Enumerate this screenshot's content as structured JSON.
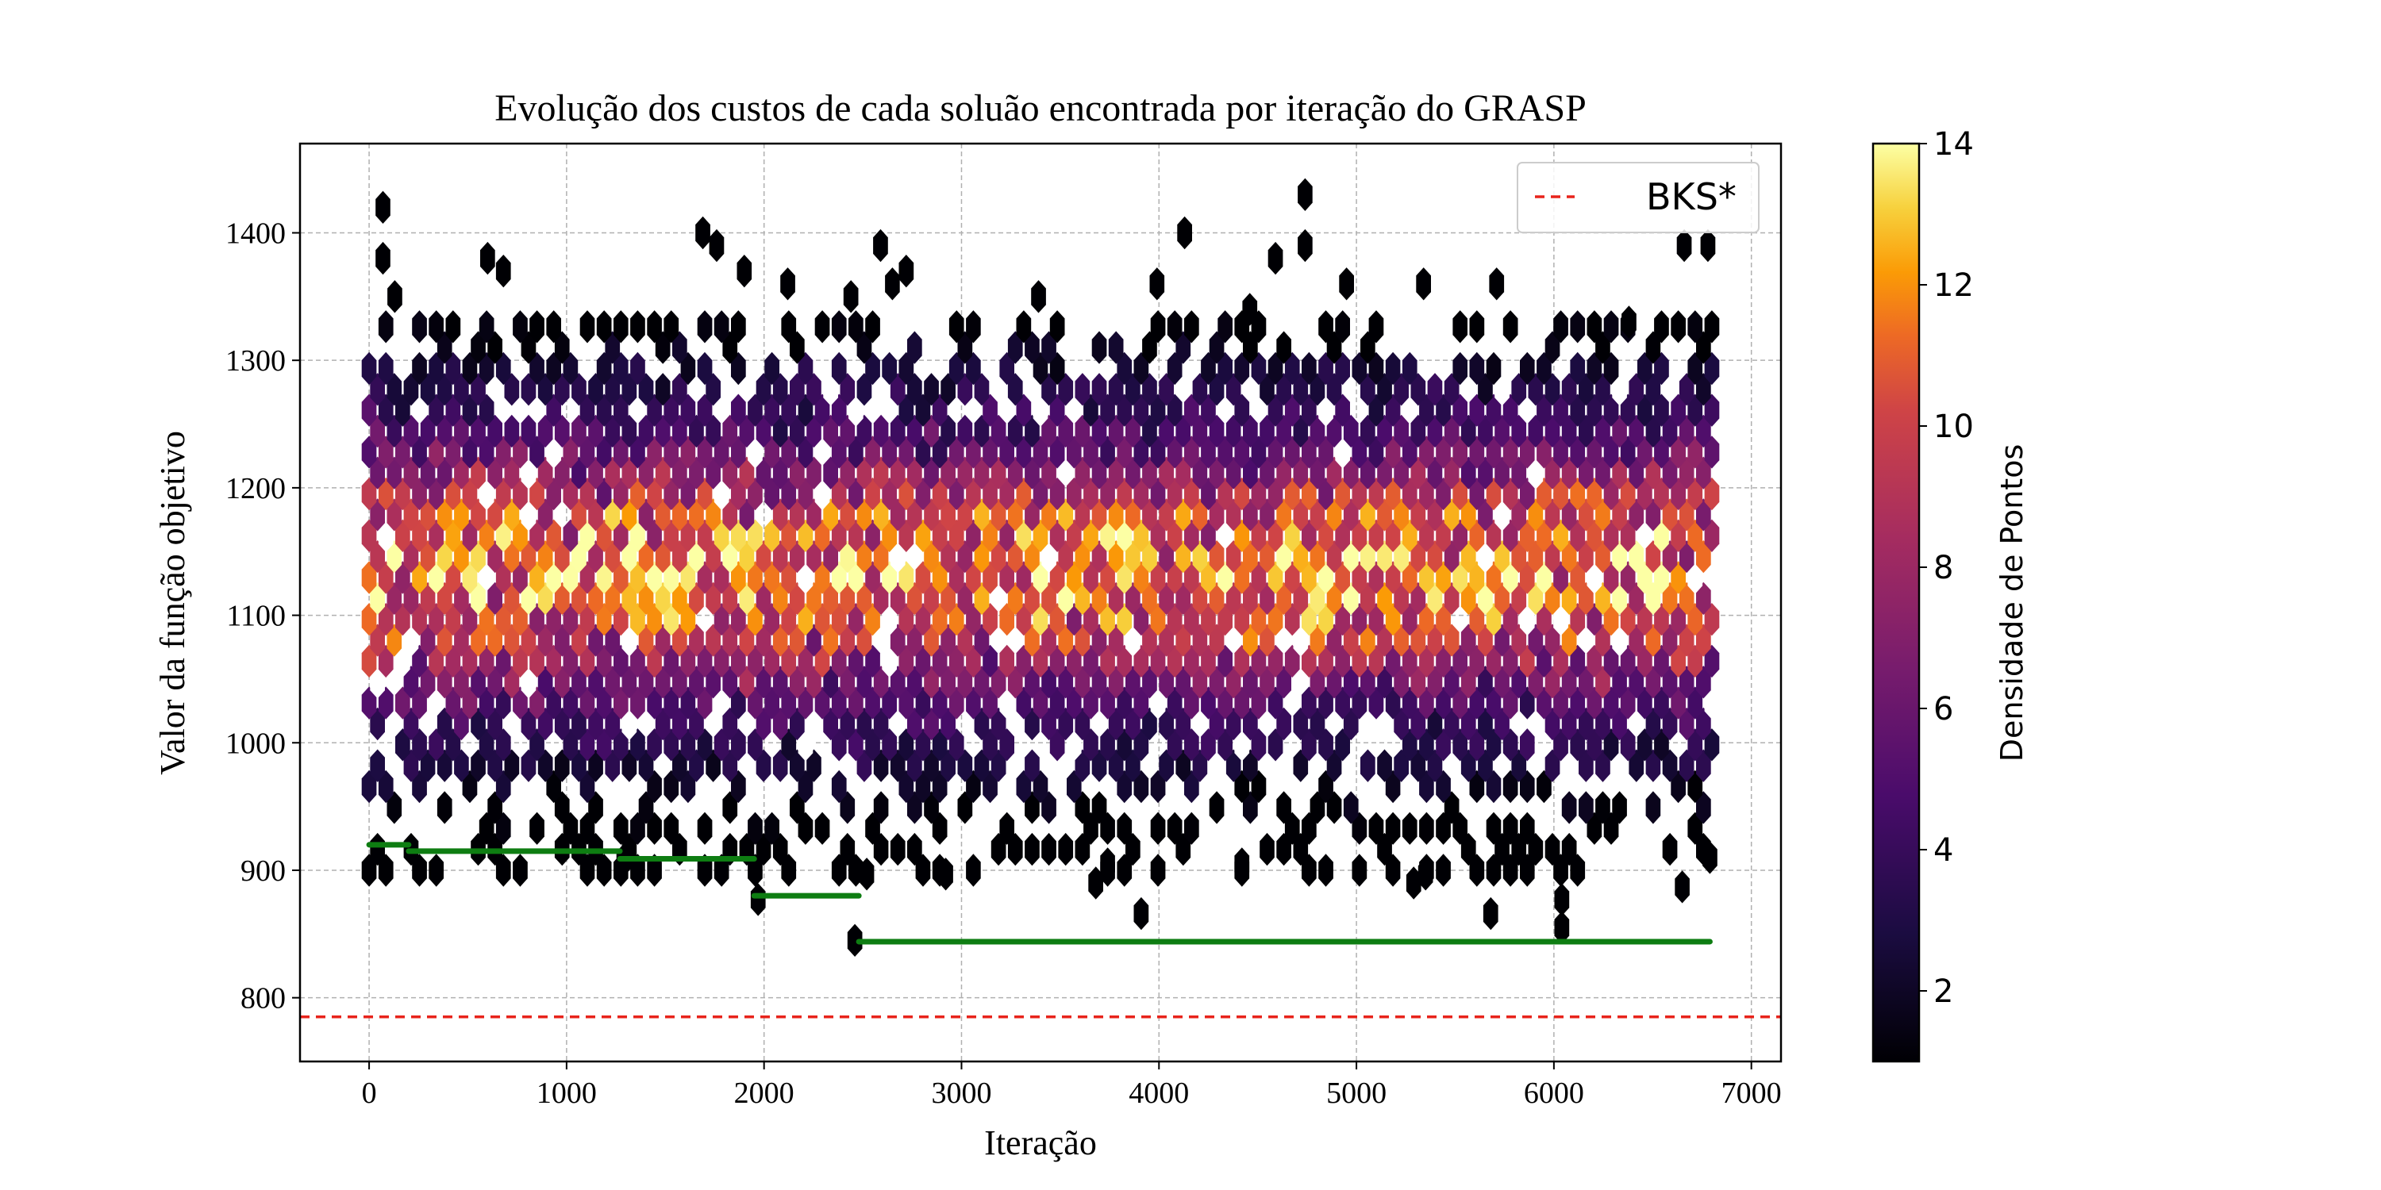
{
  "chart_data": {
    "type": "hexbin",
    "title": "Evolução dos custos de cada soluão encontrada por iteração do GRASP",
    "xlabel": "Iteração",
    "ylabel": "Valor da função objetivo",
    "xlim": [
      -350,
      7150
    ],
    "ylim": [
      750,
      1470
    ],
    "xticks": [
      0,
      1000,
      2000,
      3000,
      4000,
      5000,
      6000,
      7000
    ],
    "yticks": [
      800,
      900,
      1000,
      1100,
      1200,
      1300,
      1400
    ],
    "grid": true,
    "colormap": "inferno",
    "colorbar": {
      "label": "Densidade de Pontos",
      "range": [
        1,
        14
      ],
      "ticks": [
        2,
        4,
        6,
        8,
        10,
        12,
        14
      ]
    },
    "density_profile": {
      "x_range": [
        0,
        6800
      ],
      "core_y_range": [
        1050,
        1220
      ],
      "cloud_y_range": [
        900,
        1340
      ],
      "peak_density": 14
    },
    "outliers": [
      {
        "x": 70,
        "y": 1420
      },
      {
        "x": 70,
        "y": 1380
      },
      {
        "x": 130,
        "y": 1350
      },
      {
        "x": 600,
        "y": 1380
      },
      {
        "x": 680,
        "y": 1370
      },
      {
        "x": 1690,
        "y": 1400
      },
      {
        "x": 1760,
        "y": 1390
      },
      {
        "x": 1900,
        "y": 1370
      },
      {
        "x": 2120,
        "y": 1360
      },
      {
        "x": 2440,
        "y": 1350
      },
      {
        "x": 2590,
        "y": 1390
      },
      {
        "x": 2650,
        "y": 1360
      },
      {
        "x": 2720,
        "y": 1370
      },
      {
        "x": 3390,
        "y": 1350
      },
      {
        "x": 3990,
        "y": 1360
      },
      {
        "x": 4130,
        "y": 1400
      },
      {
        "x": 4460,
        "y": 1340
      },
      {
        "x": 4590,
        "y": 1380
      },
      {
        "x": 4740,
        "y": 1430
      },
      {
        "x": 4740,
        "y": 1390
      },
      {
        "x": 4950,
        "y": 1360
      },
      {
        "x": 5340,
        "y": 1360
      },
      {
        "x": 5710,
        "y": 1360
      },
      {
        "x": 6380,
        "y": 1330
      },
      {
        "x": 6660,
        "y": 1390
      },
      {
        "x": 6780,
        "y": 1390
      },
      {
        "x": 2920,
        "y": 897
      },
      {
        "x": 3680,
        "y": 890
      },
      {
        "x": 3740,
        "y": 905
      },
      {
        "x": 3910,
        "y": 866
      },
      {
        "x": 4420,
        "y": 905
      },
      {
        "x": 5290,
        "y": 890
      },
      {
        "x": 5350,
        "y": 897
      },
      {
        "x": 5680,
        "y": 866
      },
      {
        "x": 6040,
        "y": 877
      },
      {
        "x": 6040,
        "y": 855
      },
      {
        "x": 6650,
        "y": 887
      },
      {
        "x": 1970,
        "y": 877
      },
      {
        "x": 2460,
        "y": 845
      },
      {
        "x": 2520,
        "y": 897
      },
      {
        "x": 1290,
        "y": 908
      },
      {
        "x": 6790,
        "y": 910
      }
    ],
    "best_cost_series": [
      {
        "x": [
          0,
          200
        ],
        "y": [
          920,
          920
        ]
      },
      {
        "x": [
          200,
          1270
        ],
        "y": [
          915,
          915
        ]
      },
      {
        "x": [
          1270,
          1950
        ],
        "y": [
          909,
          909
        ]
      },
      {
        "x": [
          1950,
          2480
        ],
        "y": [
          880,
          880
        ]
      },
      {
        "x": [
          2480,
          6790
        ],
        "y": [
          844,
          844
        ]
      }
    ],
    "series": [
      {
        "name": "BKS*",
        "style": "dashed",
        "color": "#e8231b",
        "y": 785
      }
    ],
    "legend_position": "upper right",
    "best_cost_color": "#0e7d12"
  }
}
